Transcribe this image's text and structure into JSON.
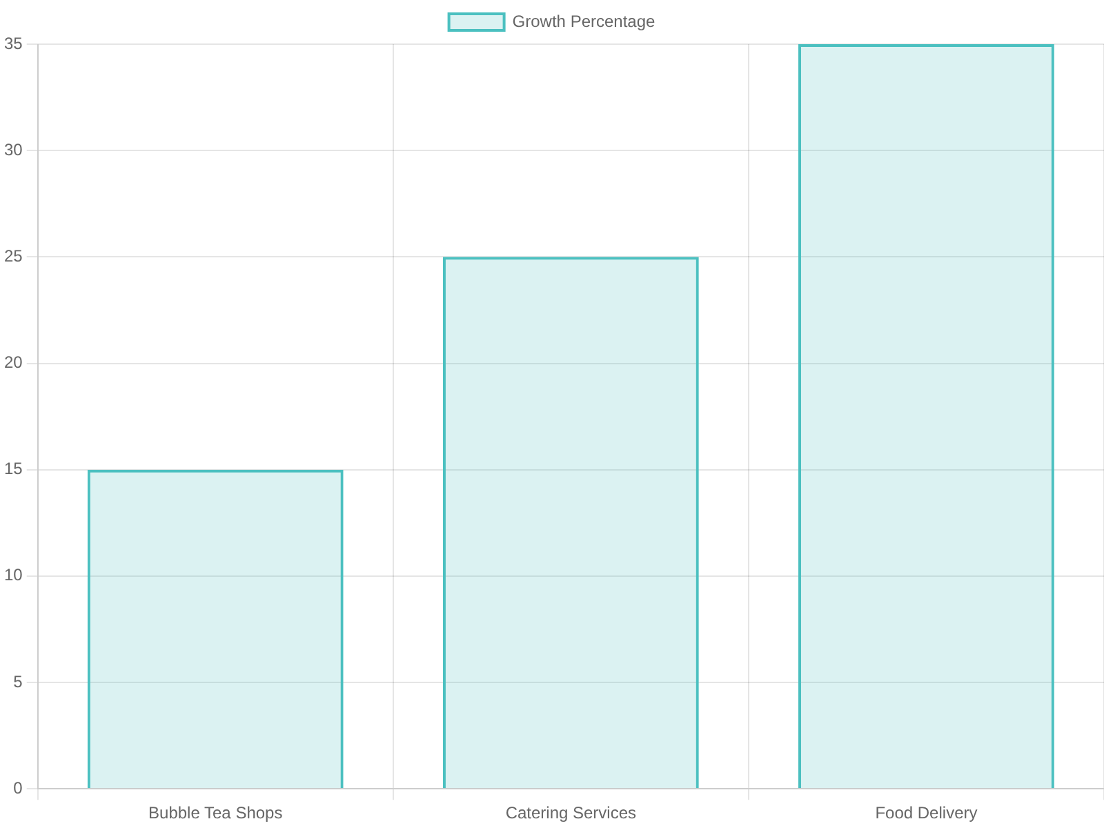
{
  "chart_data": {
    "type": "bar",
    "categories": [
      "Bubble Tea Shops",
      "Catering Services",
      "Food Delivery"
    ],
    "series": [
      {
        "name": "Growth Percentage",
        "color": "#4bc0c0",
        "values": [
          15,
          25,
          35
        ]
      }
    ],
    "ylim": [
      0,
      35
    ],
    "yticks": [
      0,
      5,
      10,
      15,
      20,
      25,
      30,
      35
    ],
    "grid": true,
    "legend": "top"
  }
}
